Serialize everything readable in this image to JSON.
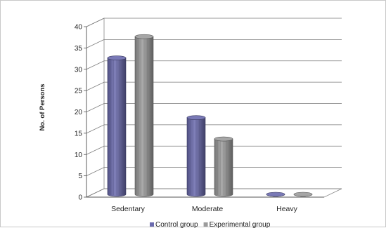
{
  "chart_data": {
    "type": "bar",
    "categories": [
      "Sedentary",
      "Moderate",
      "Heavy"
    ],
    "series": [
      {
        "name": "Control group",
        "color": "#6a6aae",
        "values": [
          32,
          18,
          0
        ]
      },
      {
        "name": "Experimental group",
        "color": "#9c9c9c",
        "values": [
          37,
          13,
          0
        ]
      }
    ],
    "ylabel": "No. of Persons",
    "ylim": [
      0,
      40
    ],
    "yticks": [
      "0",
      "5",
      "10",
      "15",
      "20",
      "25",
      "30",
      "35",
      "40"
    ],
    "grid": true,
    "legend_position": "bottom"
  }
}
